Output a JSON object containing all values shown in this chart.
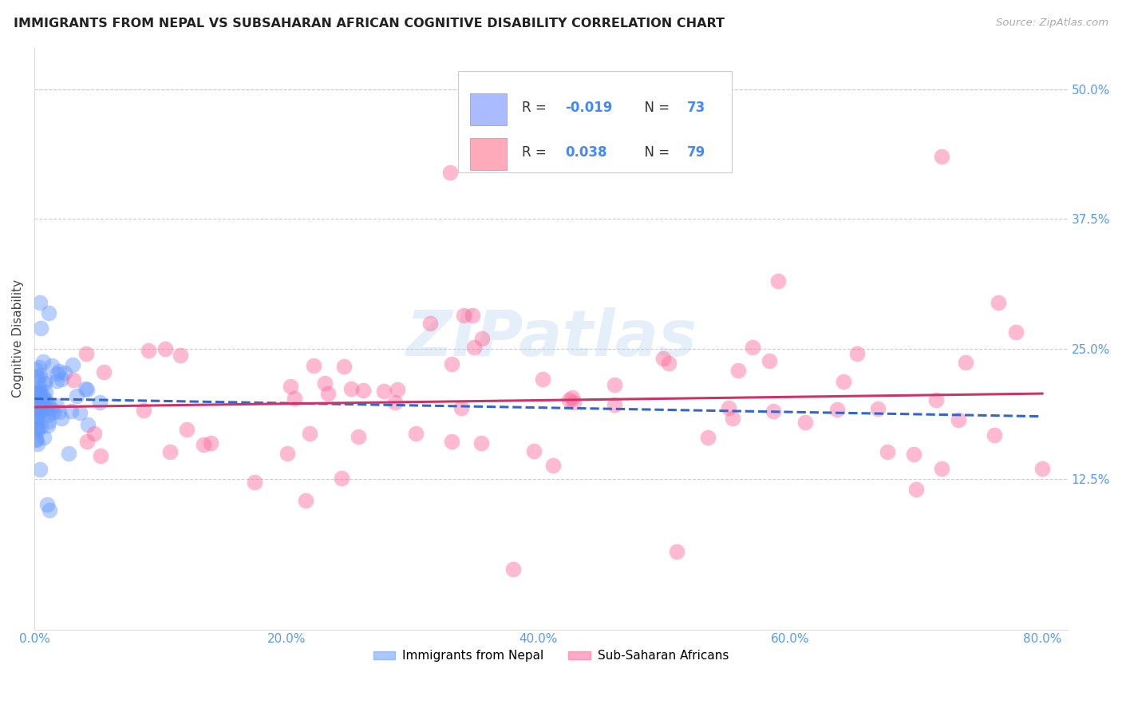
{
  "title": "IMMIGRANTS FROM NEPAL VS SUBSAHARAN AFRICAN COGNITIVE DISABILITY CORRELATION CHART",
  "source": "Source: ZipAtlas.com",
  "ylabel": "Cognitive Disability",
  "xlim": [
    0.0,
    0.82
  ],
  "ylim": [
    -0.02,
    0.54
  ],
  "nepal_R": -0.019,
  "nepal_N": 73,
  "ssa_R": 0.038,
  "ssa_N": 79,
  "nepal_color": "#6699FF",
  "ssa_color": "#FF6699",
  "watermark": "ZIPatlas",
  "legend_label_nepal": "Immigrants from Nepal",
  "legend_label_ssa": "Sub-Saharan Africans",
  "ytick_vals": [
    0.125,
    0.25,
    0.375,
    0.5
  ],
  "ytick_labels": [
    "12.5%",
    "25.0%",
    "37.5%",
    "50.0%"
  ],
  "xtick_vals": [
    0.0,
    0.2,
    0.4,
    0.6,
    0.8
  ],
  "xtick_labels": [
    "0.0%",
    "20.0%",
    "40.0%",
    "60.0%",
    "80.0%"
  ],
  "nepal_line_y_at_0": 0.202,
  "nepal_line_y_at_80": 0.185,
  "ssa_line_y_at_0": 0.194,
  "ssa_line_y_at_80": 0.207
}
